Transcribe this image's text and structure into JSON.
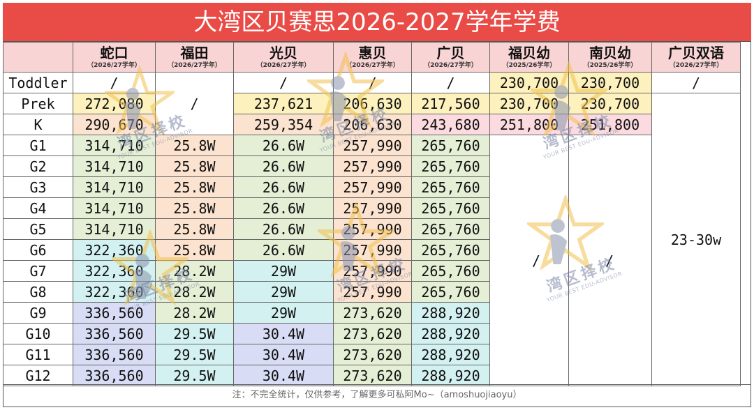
{
  "title": "大湾区贝赛思2026-2027学年学费",
  "columns": [
    {
      "name": "蛇口",
      "year": "（2026/27学年）"
    },
    {
      "name": "福田",
      "year": "（2026/27学年）"
    },
    {
      "name": "光贝",
      "year": "（2026/27学年）"
    },
    {
      "name": "惠贝",
      "year": "（2026/27学年）"
    },
    {
      "name": "广贝",
      "year": "（2026/27学年）"
    },
    {
      "name": "福贝幼",
      "year": "（2025/26学年）"
    },
    {
      "name": "南贝幼",
      "year": "（2025/26学年）"
    },
    {
      "name": "广贝双语",
      "year": "（2026/27学年）"
    }
  ],
  "rows": {
    "toddler": {
      "label": "Toddler",
      "shekou": "/",
      "guangbei": "/",
      "huibei": "/",
      "gbei": "/",
      "fubeiyou": "230,700",
      "nanbeiyou": "230,700",
      "bilingual": "/"
    },
    "prek": {
      "label": "Prek",
      "shekou": "272,080",
      "futian": "/",
      "guangbei": "237,621",
      "huibei": "206,630",
      "gbei": "217,560",
      "fubeiyou": "230,700",
      "nanbeiyou": "230,700"
    },
    "k": {
      "label": "K",
      "shekou": "290,670",
      "guangbei": "259,354",
      "huibei": "206,630",
      "gbei": "243,680",
      "fubeiyou": "251,800",
      "nanbeiyou": "251,800"
    },
    "g1": {
      "label": "G1",
      "shekou": "314,710",
      "futian": "25.8W",
      "guangbei": "26.6W",
      "huibei": "257,990",
      "gbei": "265,760"
    },
    "g2": {
      "label": "G2",
      "shekou": "314,710",
      "futian": "25.8W",
      "guangbei": "26.6W",
      "huibei": "257,990",
      "gbei": "265,760"
    },
    "g3": {
      "label": "G3",
      "shekou": "314,710",
      "futian": "25.8W",
      "guangbei": "26.6W",
      "huibei": "257,990",
      "gbei": "265,760"
    },
    "g4": {
      "label": "G4",
      "shekou": "314,710",
      "futian": "25.8W",
      "guangbei": "26.6W",
      "huibei": "257,990",
      "gbei": "265,760"
    },
    "g5": {
      "label": "G5",
      "shekou": "314,710",
      "futian": "25.8W",
      "guangbei": "26.6W",
      "huibei": "257,990",
      "gbei": "265,760"
    },
    "g6": {
      "label": "G6",
      "shekou": "322,360",
      "futian": "25.8W",
      "guangbei": "26.6W",
      "huibei": "257,990",
      "gbei": "265,760"
    },
    "g7": {
      "label": "G7",
      "shekou": "322,360",
      "futian": "28.2W",
      "guangbei": "29W",
      "huibei": "257,990",
      "gbei": "265,760"
    },
    "g8": {
      "label": "G8",
      "shekou": "322,360",
      "futian": "28.2W",
      "guangbei": "29W",
      "huibei": "257,990",
      "gbei": "265,760"
    },
    "g9": {
      "label": "G9",
      "shekou": "336,560",
      "futian": "28.2W",
      "guangbei": "29W",
      "huibei": "273,620",
      "gbei": "288,920"
    },
    "g10": {
      "label": "G10",
      "shekou": "336,560",
      "futian": "29.5W",
      "guangbei": "30.4W",
      "huibei": "273,620",
      "gbei": "288,920"
    },
    "g11": {
      "label": "G11",
      "shekou": "336,560",
      "futian": "29.5W",
      "guangbei": "30.4W",
      "huibei": "273,620",
      "gbei": "288,920"
    },
    "g12": {
      "label": "G12",
      "shekou": "336,560",
      "futian": "29.5W",
      "guangbei": "30.4W",
      "huibei": "273,620",
      "gbei": "288,920"
    }
  },
  "merged": {
    "fubeiyou_g1_g12": "/",
    "nanbeiyou_g1_g12": "/",
    "bilingual_prek_g12": "23-30w"
  },
  "note": "注：不完全统计，仅供参考，了解更多可私阿Mo~（amoshuojiaoyu）",
  "watermark": {
    "text": "湾区择校",
    "sub": "YOUR BEST EDU-ADVISOR"
  },
  "colors": {
    "title_bg": "#e94b46",
    "header_bg": "#f9d4d5",
    "yellow": "#fdf1bd",
    "peach": "#fce3cf",
    "green": "#e4efd6",
    "cyan": "#d3f1f0",
    "lavender": "#d8dcf4",
    "pink": "#fbdbe0"
  }
}
